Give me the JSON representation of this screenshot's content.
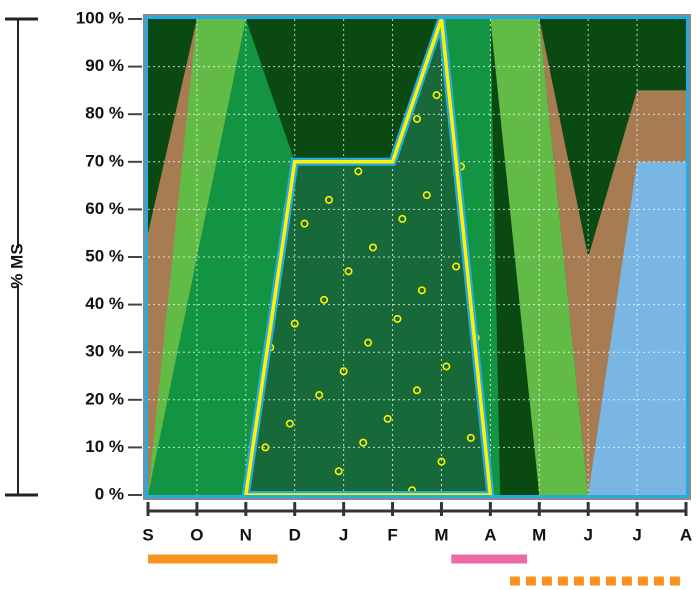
{
  "chart_data": {
    "type": "area",
    "title": "",
    "ylabel": "% MS",
    "xlabel": "",
    "ylim": [
      0,
      100
    ],
    "x_categories": [
      "S",
      "O",
      "N",
      "D",
      "J",
      "F",
      "M",
      "A",
      "M",
      "J",
      "J",
      "A"
    ],
    "y_ticks": [
      "0 %",
      "10 %",
      "20 %",
      "30 %",
      "40 %",
      "50 %",
      "60 %",
      "70 %",
      "80 %",
      "90 %",
      "100 %"
    ],
    "grid": true,
    "colors": {
      "dark_green": "#0a4a12",
      "mid_green": "#139443",
      "light_green": "#62bb46",
      "brown": "#a77c52",
      "light_blue": "#7ab6e3",
      "ensilage_fill": "#17693a",
      "yellow": "#fff200",
      "cyan": "#27aae1",
      "orange": "#f7941d",
      "pink": "#ec6aa6"
    },
    "areas": [
      {
        "color_key": "brown",
        "points": [
          [
            0,
            55
          ],
          [
            1,
            100
          ],
          [
            2,
            100
          ],
          [
            2,
            0
          ],
          [
            0,
            0
          ]
        ]
      },
      {
        "color_key": "light_green",
        "points": [
          [
            0,
            0
          ],
          [
            1,
            100
          ],
          [
            2,
            100
          ],
          [
            2,
            0
          ]
        ]
      },
      {
        "color_key": "mid_green",
        "points": [
          [
            0,
            0
          ],
          [
            2,
            100
          ],
          [
            3,
            70
          ],
          [
            3,
            0
          ]
        ]
      },
      {
        "color_key": "mid_green",
        "points": [
          [
            6,
            100
          ],
          [
            7,
            100
          ],
          [
            7.2,
            0
          ],
          [
            6,
            0
          ]
        ]
      },
      {
        "color_key": "light_green",
        "points": [
          [
            7,
            100
          ],
          [
            8,
            100
          ],
          [
            9,
            0
          ],
          [
            8,
            0
          ]
        ]
      },
      {
        "color_key": "brown",
        "points": [
          [
            8,
            100
          ],
          [
            9,
            50
          ],
          [
            10,
            85
          ],
          [
            11,
            85
          ],
          [
            11,
            0
          ],
          [
            9,
            0
          ]
        ]
      },
      {
        "color_key": "light_blue",
        "points": [
          [
            9,
            0
          ],
          [
            10,
            70
          ],
          [
            11,
            70
          ],
          [
            11,
            0
          ]
        ]
      }
    ],
    "ensilage_polygon": [
      [
        2,
        0
      ],
      [
        3,
        70
      ],
      [
        5,
        70
      ],
      [
        6,
        100
      ],
      [
        7,
        0
      ]
    ],
    "dots": [
      [
        2.4,
        10
      ],
      [
        2.5,
        31
      ],
      [
        2.9,
        15
      ],
      [
        3,
        36
      ],
      [
        3.2,
        57
      ],
      [
        3.5,
        21
      ],
      [
        3.6,
        41
      ],
      [
        3.7,
        62
      ],
      [
        3.9,
        5
      ],
      [
        4,
        26
      ],
      [
        4.1,
        47
      ],
      [
        4.3,
        68
      ],
      [
        4.4,
        11
      ],
      [
        4.5,
        32
      ],
      [
        4.6,
        52
      ],
      [
        4.9,
        16
      ],
      [
        5.1,
        37
      ],
      [
        5.2,
        58
      ],
      [
        5.4,
        1
      ],
      [
        5.5,
        22
      ],
      [
        5.6,
        43
      ],
      [
        5.7,
        63
      ],
      [
        5.9,
        84
      ],
      [
        5.5,
        79
      ],
      [
        6,
        7
      ],
      [
        6.1,
        27
      ],
      [
        6.3,
        48
      ],
      [
        6.4,
        69
      ],
      [
        6.6,
        12
      ],
      [
        6.7,
        33
      ],
      [
        3.4,
        0
      ]
    ],
    "periods": [
      {
        "name": "",
        "color_key": "orange",
        "style": "solid",
        "start": 0,
        "end": 2.65
      },
      {
        "name": "",
        "color_key": "pink",
        "style": "solid",
        "start": 6.2,
        "end": 7.75
      },
      {
        "name": "",
        "color_key": "orange",
        "style": "dashed",
        "start": 7.4,
        "end": 11
      }
    ]
  }
}
